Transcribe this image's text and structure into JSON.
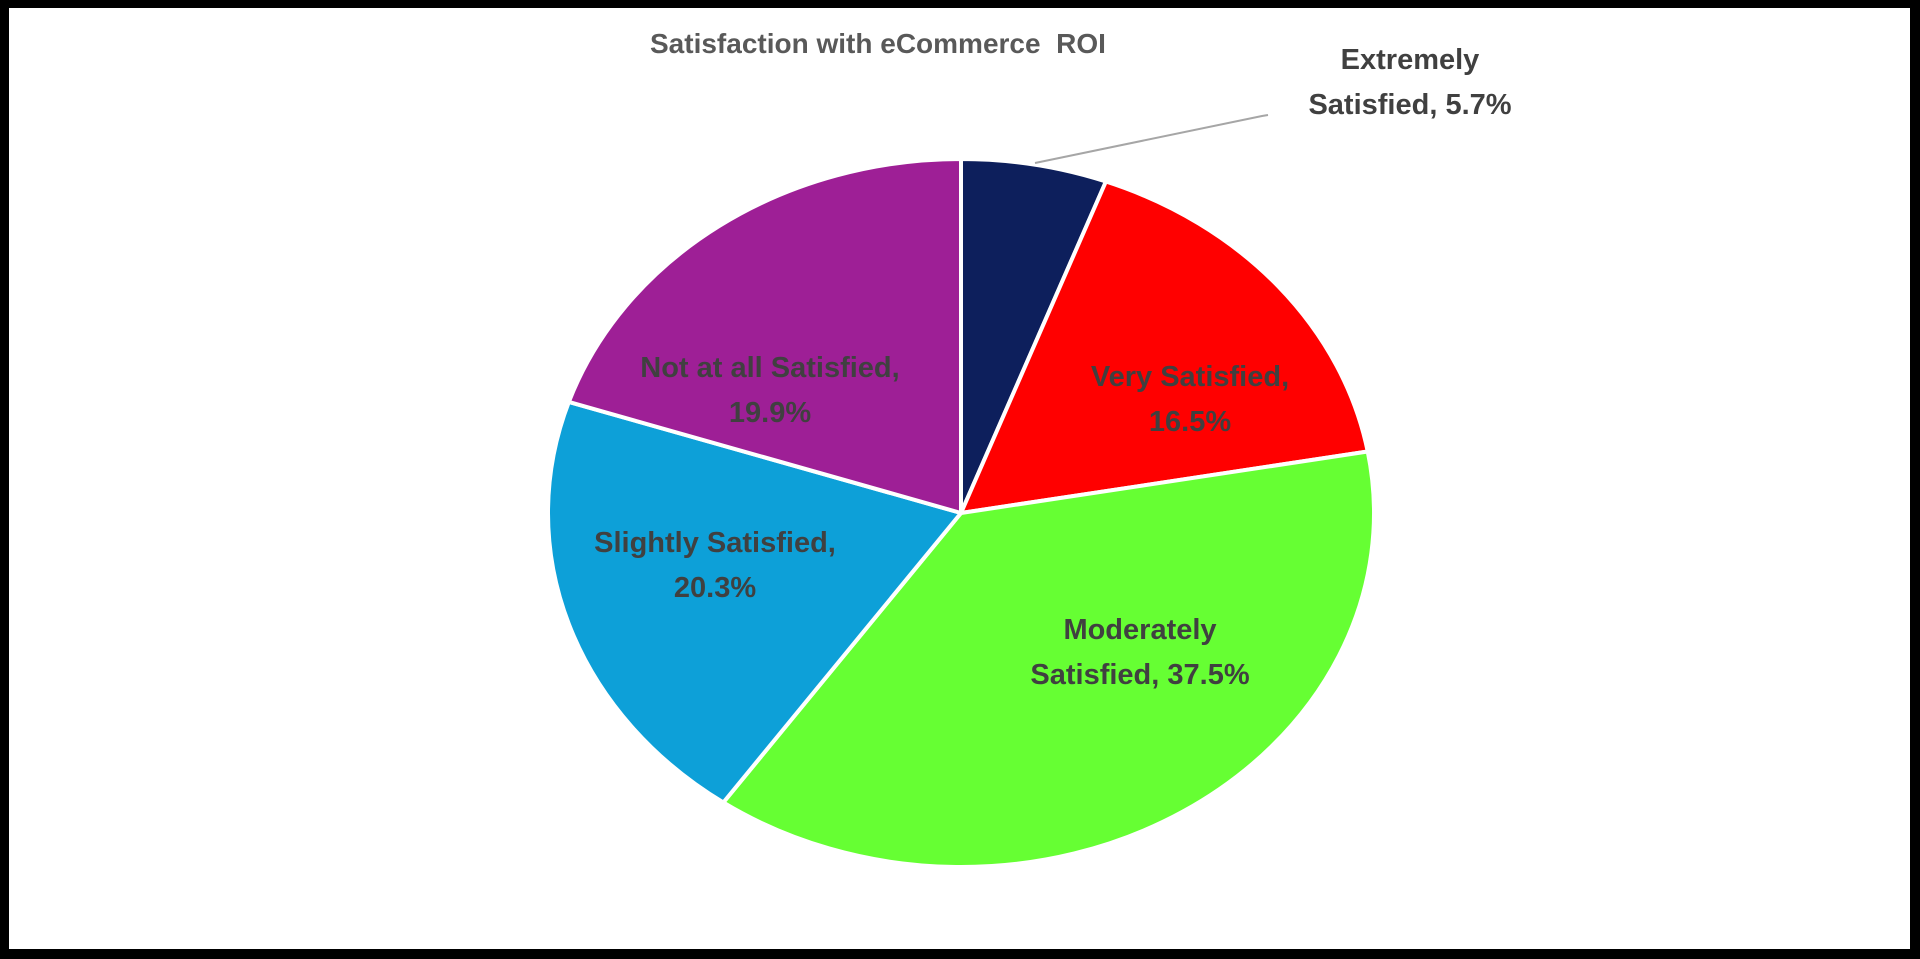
{
  "chart_data": {
    "type": "pie",
    "title": "Satisfaction with eCommerce  ROI",
    "categories": [
      "Extremely Satisfied",
      "Very Satisfied",
      "Moderately Satisfied",
      "Slightly Satisfied",
      "Not at all Satisfied"
    ],
    "values": [
      5.7,
      16.5,
      37.5,
      20.3,
      19.9
    ],
    "unit": "%",
    "colors": [
      "#0d1f5c",
      "#ff0000",
      "#66ff33",
      "#0da0d8",
      "#9e1f96"
    ],
    "start_angle": "12 o'clock, clockwise",
    "legend": "none (data labels on slices)",
    "labels": [
      {
        "line1": "Extremely",
        "line2": "Satisfied, 5.7%",
        "position": "outside with leader line"
      },
      {
        "line1": "Very Satisfied,",
        "line2": "16.5%",
        "position": "inside"
      },
      {
        "line1": "Moderately",
        "line2": "Satisfied, 37.5%",
        "position": "inside"
      },
      {
        "line1": "Slightly Satisfied,",
        "line2": "20.3%",
        "position": "inside"
      },
      {
        "line1": "Not at all Satisfied,",
        "line2": "19.9%",
        "position": "inside"
      }
    ]
  },
  "style": {
    "label_color": "#404040",
    "title_color": "#595959",
    "separator_color": "#ffffff",
    "border_color": "#000000"
  }
}
